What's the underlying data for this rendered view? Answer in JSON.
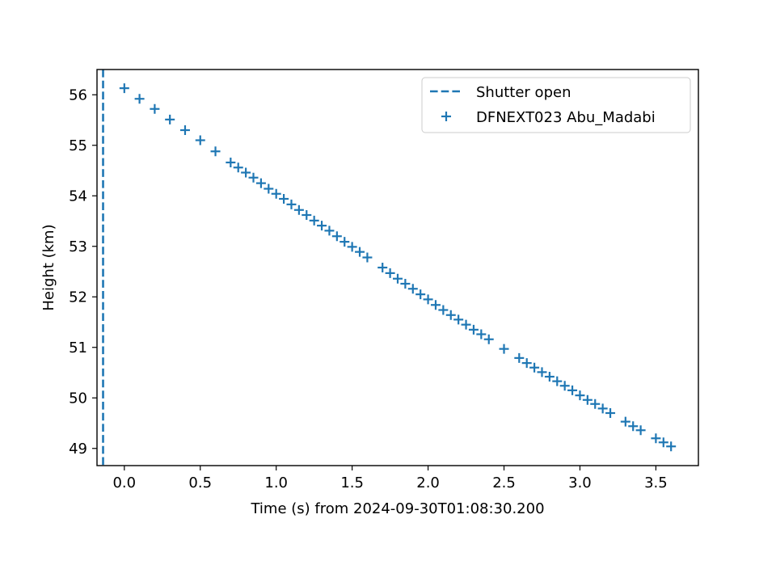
{
  "chart_data": {
    "type": "scatter",
    "title": "",
    "xlabel": "Time (s) from 2024-09-30T01:08:30.200",
    "ylabel": "Height (km)",
    "xlim": [
      -0.18,
      3.78
    ],
    "ylim": [
      48.66,
      56.5
    ],
    "x_ticks": [
      0.0,
      0.5,
      1.0,
      1.5,
      2.0,
      2.5,
      3.0,
      3.5
    ],
    "x_tick_labels": [
      "0.0",
      "0.5",
      "1.0",
      "1.5",
      "2.0",
      "2.5",
      "3.0",
      "3.5"
    ],
    "y_ticks": [
      49,
      50,
      51,
      52,
      53,
      54,
      55,
      56
    ],
    "y_tick_labels": [
      "49",
      "50",
      "51",
      "52",
      "53",
      "54",
      "55",
      "56"
    ],
    "grid": false,
    "legend_position": "top-right",
    "color": "#1f77b4",
    "vline": {
      "label": "Shutter open",
      "x": -0.14,
      "style": "dashed"
    },
    "series": [
      {
        "name": "DFNEXT023 Abu_Madabi",
        "marker": "plus",
        "x": [
          0.0,
          0.1,
          0.2,
          0.3,
          0.4,
          0.5,
          0.6,
          0.7,
          0.75,
          0.8,
          0.85,
          0.9,
          0.95,
          1.0,
          1.05,
          1.1,
          1.15,
          1.2,
          1.25,
          1.3,
          1.35,
          1.4,
          1.45,
          1.5,
          1.55,
          1.6,
          1.7,
          1.75,
          1.8,
          1.85,
          1.9,
          1.95,
          2.0,
          2.05,
          2.1,
          2.15,
          2.2,
          2.25,
          2.3,
          2.35,
          2.4,
          2.5,
          2.6,
          2.65,
          2.7,
          2.75,
          2.8,
          2.85,
          2.9,
          2.95,
          3.0,
          3.05,
          3.1,
          3.15,
          3.2,
          3.3,
          3.35,
          3.4,
          3.5,
          3.55,
          3.6
        ],
        "y": [
          56.13,
          55.92,
          55.72,
          55.51,
          55.3,
          55.1,
          54.88,
          54.66,
          54.56,
          54.46,
          54.36,
          54.25,
          54.14,
          54.04,
          53.94,
          53.83,
          53.72,
          53.62,
          53.51,
          53.41,
          53.31,
          53.2,
          53.09,
          52.99,
          52.89,
          52.78,
          52.58,
          52.47,
          52.36,
          52.26,
          52.16,
          52.05,
          51.95,
          51.84,
          51.74,
          51.64,
          51.55,
          51.45,
          51.35,
          51.26,
          51.16,
          50.97,
          50.79,
          50.69,
          50.6,
          50.51,
          50.42,
          50.33,
          50.24,
          50.15,
          50.05,
          49.96,
          49.88,
          49.79,
          49.7,
          49.53,
          49.44,
          49.36,
          49.2,
          49.12,
          49.04
        ]
      }
    ]
  }
}
